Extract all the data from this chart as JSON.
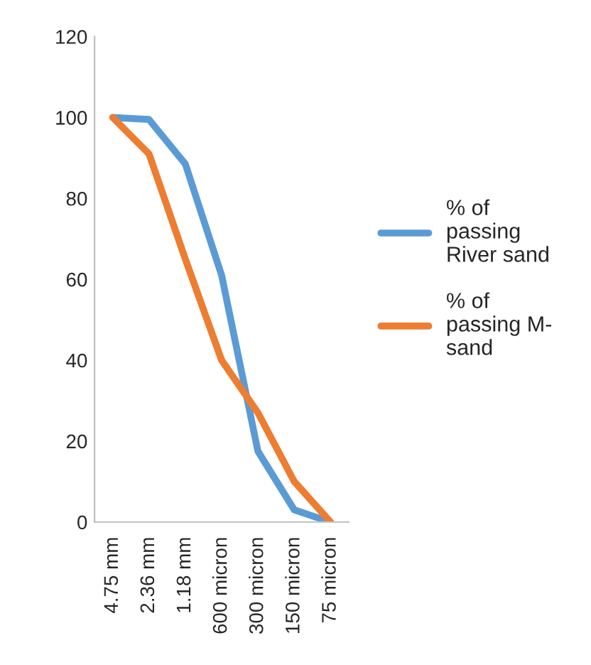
{
  "chart_data": {
    "type": "line",
    "categories": [
      "4.75 mm",
      "2.36 mm",
      "1.18 mm",
      "600 micron",
      "300 micron",
      "150 micron",
      "75 micron"
    ],
    "series": [
      {
        "name": "% of\npassing\nRiver sand",
        "color": "#5b9bd5",
        "values": [
          100,
          99.5,
          88.5,
          61,
          17.5,
          3,
          0
        ]
      },
      {
        "name": "% of\npassing M-\nsand",
        "color": "#ed7d31",
        "values": [
          100,
          91,
          65,
          40,
          27,
          10,
          0
        ]
      }
    ],
    "ylim": [
      0,
      120
    ],
    "yticks": [
      0,
      20,
      40,
      60,
      80,
      100,
      120
    ],
    "grid": false,
    "legend": "right",
    "marker": "none",
    "line_style": "solid"
  }
}
